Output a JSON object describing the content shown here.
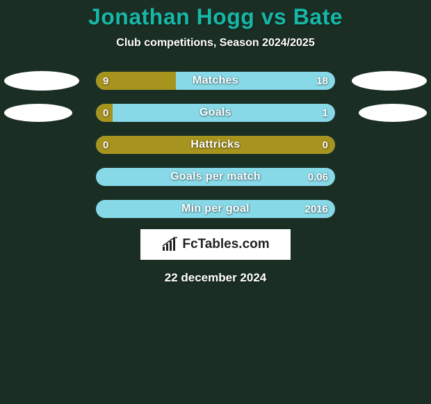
{
  "background_color": "#1a2e24",
  "title": {
    "text": "Jonathan Hogg vs Bate",
    "color": "#17b7a6",
    "fontsize": 32
  },
  "subtitle": {
    "text": "Club competitions, Season 2024/2025",
    "color": "#ffffff",
    "fontsize": 16
  },
  "left_color": "#a7941f",
  "right_color": "#87d9e8",
  "ellipse_color": "#ffffff",
  "rows": [
    {
      "label": "Matches",
      "left_val": "9",
      "right_val": "18",
      "left_pct": 33.3,
      "show_ellipses": true,
      "ellipse_left_w": 108,
      "ellipse_left_h": 28,
      "ellipse_right_w": 108,
      "ellipse_right_h": 28
    },
    {
      "label": "Goals",
      "left_val": "0",
      "right_val": "1",
      "left_pct": 7,
      "show_ellipses": true,
      "ellipse_left_w": 98,
      "ellipse_left_h": 26,
      "ellipse_right_w": 98,
      "ellipse_right_h": 26
    },
    {
      "label": "Hattricks",
      "left_val": "0",
      "right_val": "0",
      "left_pct": 100,
      "show_ellipses": false
    },
    {
      "label": "Goals per match",
      "left_val": "",
      "right_val": "0.06",
      "left_pct": 0,
      "show_ellipses": false
    },
    {
      "label": "Min per goal",
      "left_val": "",
      "right_val": "2016",
      "left_pct": 0,
      "show_ellipses": false
    }
  ],
  "logo": {
    "text": "FcTables.com",
    "icon_color": "#222222"
  },
  "date": {
    "text": "22 december 2024",
    "color": "#ffffff"
  }
}
